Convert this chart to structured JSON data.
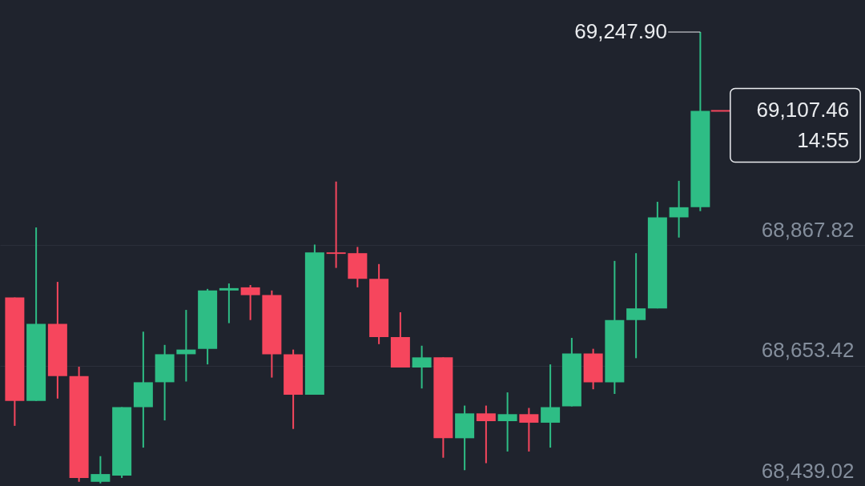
{
  "chart_data": {
    "type": "candlestick",
    "categories": [
      null,
      null,
      null,
      null,
      null,
      null,
      null,
      null,
      null,
      null,
      null,
      null,
      null,
      null,
      null,
      null,
      null,
      null,
      null,
      null,
      null,
      null,
      null,
      null,
      null,
      null,
      null,
      null,
      null,
      null,
      null,
      null,
      null,
      null,
      null,
      null,
      null,
      null,
      null,
      null
    ],
    "ohlc": [
      [
        68774.9,
        68774.9,
        68546.2,
        68590.6
      ],
      [
        68590.6,
        68899.7,
        68590.6,
        68727.8
      ],
      [
        68727.8,
        68802.7,
        68594.8,
        68635.0
      ],
      [
        68635.0,
        68651.6,
        68446.5,
        68453.4
      ],
      [
        68446.5,
        68492.2,
        68443.7,
        68460.3
      ],
      [
        68457.5,
        68579.5,
        68453.4,
        68579.5
      ],
      [
        68579.5,
        68714.0,
        68507.4,
        68623.9
      ],
      [
        68623.9,
        68690.4,
        68555.9,
        68673.8
      ],
      [
        68673.8,
        68752.8,
        68625.2,
        68682.1
      ],
      [
        68683.5,
        68790.2,
        68655.7,
        68787.4
      ],
      [
        68787.4,
        68799.9,
        68729.2,
        68791.6
      ],
      [
        68793.0,
        68797.1,
        68734.7,
        68779.1
      ],
      [
        68779.1,
        68787.4,
        68632.2,
        68673.8
      ],
      [
        68673.8,
        68682.1,
        68540.7,
        68601.7
      ],
      [
        68601.7,
        68869.2,
        68601.7,
        68855.3
      ],
      [
        68855.3,
        68981.5,
        68827.6,
        68852.6
      ],
      [
        68853.9,
        68865.0,
        68793.0,
        68808.2
      ],
      [
        68808.2,
        68834.5,
        68691.8,
        68704.3
      ],
      [
        68704.3,
        68748.6,
        68650.2,
        68650.2
      ],
      [
        68650.2,
        68689.0,
        68612.8,
        68668.2
      ],
      [
        68668.2,
        68668.2,
        68489.4,
        68524.1
      ],
      [
        68524.1,
        68582.3,
        68467.2,
        68568.4
      ],
      [
        68568.4,
        68582.3,
        68479.7,
        68554.6
      ],
      [
        68554.6,
        68605.8,
        68500.5,
        68567.0
      ],
      [
        68567.0,
        68578.1,
        68500.5,
        68551.8
      ],
      [
        68551.8,
        68655.7,
        68507.4,
        68579.5
      ],
      [
        68580.9,
        68702.9,
        68580.9,
        68675.1
      ],
      [
        68675.1,
        68683.5,
        68611.4,
        68623.9
      ],
      [
        68623.9,
        68840.1,
        68603.1,
        68734.7
      ],
      [
        68734.7,
        68853.9,
        68666.8,
        68755.5
      ],
      [
        68755.5,
        68945.4,
        68755.5,
        68917.7
      ],
      [
        68917.7,
        68982.8,
        68881.7,
        68935.7
      ],
      [
        68935.7,
        69247.9,
        68928.8,
        69107.46
      ],
      null,
      null,
      null,
      null,
      null,
      null,
      null
    ],
    "colors": [
      "#f6465d",
      "#2ebd85",
      "#f6465d",
      "#f6465d",
      "#2ebd85",
      "#2ebd85",
      "#2ebd85",
      "#2ebd85",
      "#2ebd85",
      "#2ebd85",
      "#2ebd85",
      "#f6465d",
      "#f6465d",
      "#f6465d",
      "#2ebd85",
      "#f6465d",
      "#f6465d",
      "#f6465d",
      "#f6465d",
      "#2ebd85",
      "#f6465d",
      "#2ebd85",
      "#f6465d",
      "#2ebd85",
      "#f6465d",
      "#2ebd85",
      "#2ebd85",
      "#f6465d",
      "#2ebd85",
      "#2ebd85",
      "#2ebd85",
      "#2ebd85",
      "#2ebd85",
      null,
      null,
      null,
      null,
      null,
      null,
      null
    ],
    "ylim": [
      68439.02,
      69305
    ],
    "yticks": [
      {
        "value": 68439.02,
        "label": "68,439.02"
      },
      {
        "value": 68653.42,
        "label": "68,653.42"
      },
      {
        "value": 68867.82,
        "label": "68,867.82"
      }
    ],
    "grid": "y",
    "tick_labels": "y",
    "ref_lines": [
      {
        "axis": "y",
        "value": 69107.46,
        "label": "69,107.46",
        "color": "#f6465d"
      }
    ],
    "annotations": [
      "69,247.90",
      "14:55"
    ]
  }
}
